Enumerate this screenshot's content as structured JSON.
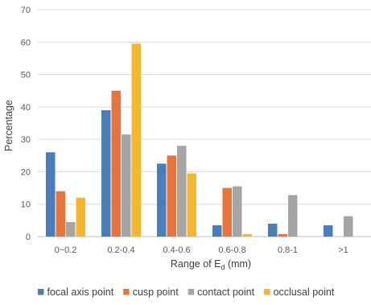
{
  "chart_data": {
    "type": "bar",
    "title": "",
    "xlabel_main": "Range of E",
    "xlabel_sub": "d",
    "xlabel_unit": " (mm)",
    "ylabel": "Percentage",
    "ylim": [
      0,
      70
    ],
    "yticks": [
      0,
      10,
      20,
      30,
      40,
      50,
      60,
      70
    ],
    "grid": "horizontal",
    "legend_position": "bottom",
    "categories": [
      "0~0.2",
      "0.2-0.4",
      "0.4-0.6",
      "0.6-0.8",
      "0.8-1",
      ">1"
    ],
    "series": [
      {
        "name": "focal axis point",
        "color": "#4a7ebb",
        "values": [
          26,
          39,
          22.5,
          3.5,
          4,
          3.5
        ]
      },
      {
        "name": "cusp point",
        "color": "#e8743b",
        "values": [
          14,
          45,
          25,
          15,
          0.8,
          0
        ]
      },
      {
        "name": "contact point",
        "color": "#a5a5a5",
        "values": [
          4.5,
          31.5,
          28,
          15.5,
          12.8,
          6.3
        ]
      },
      {
        "name": "occlusal point",
        "color": "#f5b730",
        "values": [
          12,
          59.5,
          19.5,
          0.8,
          0,
          0
        ]
      }
    ]
  }
}
